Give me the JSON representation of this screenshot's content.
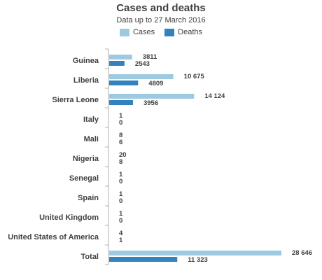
{
  "chart_data": {
    "type": "bar",
    "orientation": "horizontal",
    "title": "Cases and deaths",
    "subtitle": "Data up to 27 March 2016",
    "categories": [
      "Guinea",
      "Liberia",
      "Sierra Leone",
      "Italy",
      "Mali",
      "Nigeria",
      "Senegal",
      "Spain",
      "United Kingdom",
      "United States of America",
      "Total"
    ],
    "series": [
      {
        "name": "Cases",
        "color": "#9ecae1",
        "values": [
          3811,
          10675,
          14124,
          1,
          8,
          20,
          1,
          1,
          1,
          4,
          28646
        ],
        "labels": [
          "3811",
          "10 675",
          "14 124",
          "1",
          "8",
          "20",
          "1",
          "1",
          "1",
          "4",
          "28 646"
        ]
      },
      {
        "name": "Deaths",
        "color": "#3182bd",
        "values": [
          2543,
          4809,
          3956,
          0,
          6,
          8,
          0,
          0,
          0,
          1,
          11323
        ],
        "labels": [
          "2543",
          "4809",
          "3956",
          "0",
          "6",
          "8",
          "0",
          "0",
          "0",
          "1",
          "11 323"
        ]
      }
    ],
    "xlim": [
      0,
      28646
    ],
    "grid": false,
    "legend_position": "top-center"
  }
}
